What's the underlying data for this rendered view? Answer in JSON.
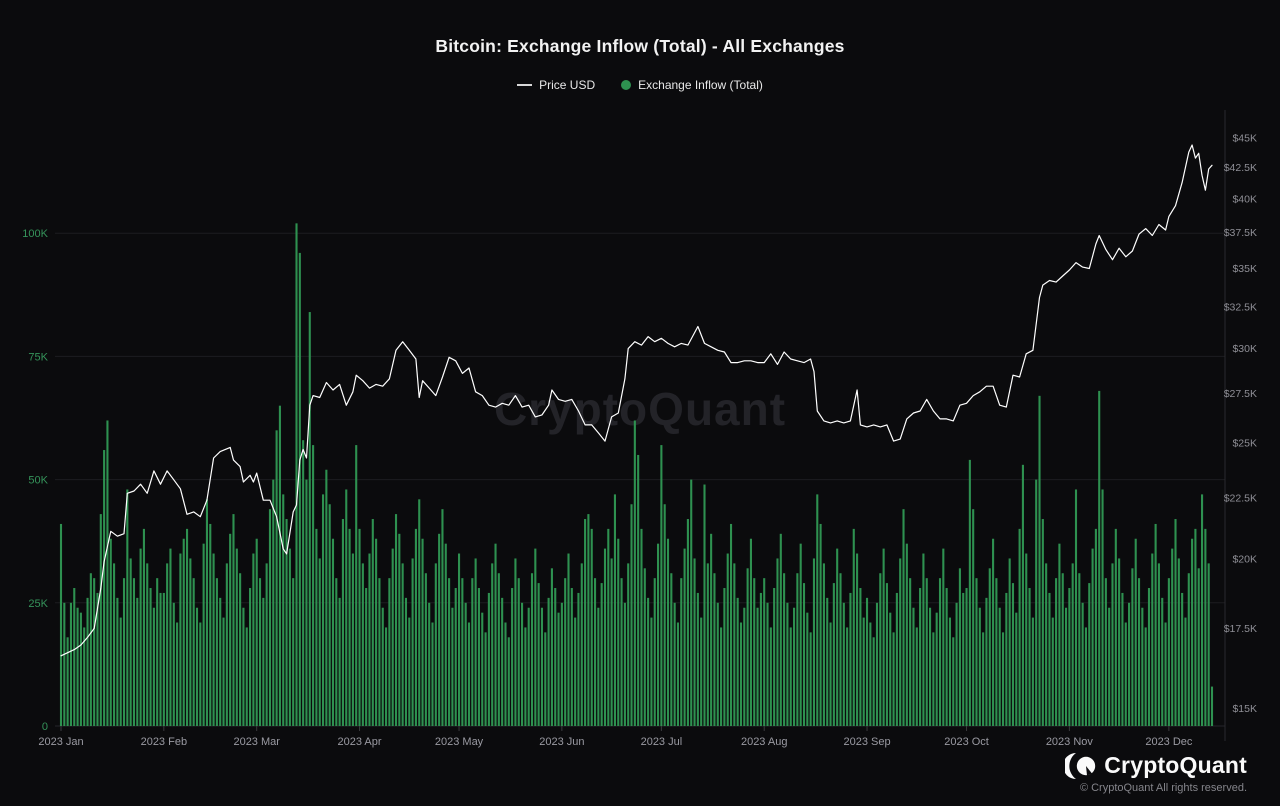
{
  "header": {
    "title": "Bitcoin: Exchange Inflow (Total) - All Exchanges",
    "legend": [
      {
        "label": "Price USD",
        "marker": "line",
        "color": "#ffffff"
      },
      {
        "label": "Exchange Inflow (Total)",
        "marker": "dot",
        "color": "#2e9150"
      }
    ]
  },
  "watermark": "CryptoQuant",
  "footer": {
    "brand": "CryptoQuant",
    "copyright": "© CryptoQuant All rights reserved."
  },
  "chart_data": {
    "type": "bar+line",
    "title": "Bitcoin: Exchange Inflow (Total) - All Exchanges",
    "x_range": "2023 Jan 1 - 2023 Dec 14, daily",
    "x_tick_labels": [
      "2023 Jan",
      "2023 Feb",
      "2023 Mar",
      "2023 Apr",
      "2023 May",
      "2023 Jun",
      "2023 Jul",
      "2023 Aug",
      "2023 Sep",
      "2023 Oct",
      "2023 Nov",
      "2023 Dec"
    ],
    "x_tick_days": [
      1,
      32,
      60,
      91,
      121,
      152,
      182,
      213,
      244,
      274,
      305,
      335
    ],
    "left_axis": {
      "scale": "linear",
      "unit": "BTC",
      "min": 0,
      "max": 125000,
      "tick_values": [
        0,
        25000,
        50000,
        75000,
        100000
      ],
      "tick_labels": [
        "0",
        "25K",
        "50K",
        "75K",
        "100K"
      ],
      "grid": true
    },
    "right_axis": {
      "scale": "log",
      "unit": "USD",
      "min": 14500,
      "max": 47500,
      "tick_values": [
        15000,
        17500,
        20000,
        22500,
        25000,
        27500,
        30000,
        32500,
        35000,
        37500,
        40000,
        42500,
        45000
      ],
      "tick_labels": [
        "$15K",
        "$17.5K",
        "$20K",
        "$22.5K",
        "$25K",
        "$27.5K",
        "$30K",
        "$32.5K",
        "$35K",
        "$37.5K",
        "$40K",
        "$42.5K",
        "$45K"
      ],
      "grid": false
    },
    "series": [
      {
        "name": "Exchange Inflow (Total)",
        "type": "bar",
        "axis": "left",
        "color": "#2e9150",
        "unit": "K BTC",
        "daily_values_k": [
          41,
          25,
          18,
          25,
          28,
          24,
          23,
          20,
          26,
          31,
          30,
          27,
          43,
          56,
          62,
          38,
          33,
          26,
          22,
          30,
          48,
          34,
          30,
          26,
          36,
          40,
          33,
          28,
          24,
          30,
          27,
          27,
          33,
          36,
          25,
          21,
          35,
          38,
          40,
          34,
          30,
          24,
          21,
          37,
          46,
          41,
          35,
          30,
          26,
          22,
          33,
          39,
          43,
          36,
          31,
          24,
          20,
          28,
          35,
          38,
          30,
          26,
          33,
          44,
          50,
          60,
          65,
          47,
          42,
          36,
          30,
          102,
          96,
          58,
          50,
          84,
          57,
          40,
          34,
          47,
          52,
          45,
          38,
          30,
          26,
          42,
          48,
          40,
          35,
          57,
          40,
          33,
          28,
          35,
          42,
          38,
          30,
          24,
          20,
          30,
          36,
          43,
          39,
          33,
          26,
          22,
          34,
          40,
          46,
          38,
          31,
          25,
          21,
          33,
          39,
          44,
          37,
          30,
          24,
          28,
          35,
          30,
          25,
          21,
          30,
          34,
          28,
          23,
          19,
          27,
          33,
          37,
          31,
          26,
          21,
          18,
          28,
          34,
          30,
          25,
          20,
          24,
          31,
          36,
          29,
          24,
          19,
          26,
          32,
          28,
          23,
          25,
          30,
          35,
          28,
          22,
          27,
          33,
          42,
          43,
          40,
          30,
          24,
          29,
          36,
          40,
          34,
          47,
          38,
          30,
          25,
          33,
          45,
          62,
          55,
          40,
          32,
          26,
          22,
          30,
          37,
          57,
          45,
          38,
          31,
          25,
          21,
          30,
          36,
          42,
          50,
          34,
          27,
          22,
          49,
          33,
          39,
          31,
          25,
          20,
          28,
          35,
          41,
          33,
          26,
          21,
          24,
          32,
          38,
          30,
          24,
          27,
          30,
          25,
          20,
          28,
          34,
          39,
          31,
          25,
          20,
          24,
          31,
          37,
          29,
          23,
          19,
          34,
          47,
          41,
          33,
          26,
          21,
          29,
          36,
          31,
          25,
          20,
          27,
          40,
          35,
          28,
          22,
          26,
          21,
          18,
          25,
          31,
          36,
          29,
          23,
          19,
          27,
          34,
          44,
          37,
          30,
          24,
          20,
          28,
          35,
          30,
          24,
          19,
          23,
          30,
          36,
          28,
          22,
          18,
          25,
          32,
          27,
          28,
          54,
          44,
          30,
          24,
          19,
          26,
          32,
          38,
          30,
          24,
          19,
          27,
          34,
          29,
          23,
          40,
          53,
          35,
          28,
          22,
          50,
          67,
          42,
          33,
          27,
          22,
          30,
          37,
          31,
          24,
          28,
          33,
          48,
          31,
          25,
          20,
          29,
          36,
          40,
          68,
          48,
          30,
          24,
          33,
          40,
          34,
          27,
          21,
          25,
          32,
          38,
          30,
          24,
          20,
          28,
          35,
          41,
          33,
          26,
          21,
          30,
          36,
          42,
          34,
          27,
          22,
          31,
          38,
          40,
          32,
          47,
          40,
          33,
          8
        ]
      },
      {
        "name": "Price USD",
        "type": "line",
        "axis": "right",
        "color": "#ffffff",
        "unit": "K USD",
        "points_day_value_k": [
          [
            1,
            16.6
          ],
          [
            3,
            16.7
          ],
          [
            5,
            16.8
          ],
          [
            7,
            16.95
          ],
          [
            9,
            17.2
          ],
          [
            11,
            17.5
          ],
          [
            13,
            18.9
          ],
          [
            14,
            19.9
          ],
          [
            16,
            21.1
          ],
          [
            18,
            20.9
          ],
          [
            20,
            21.0
          ],
          [
            21,
            22.7
          ],
          [
            23,
            22.8
          ],
          [
            25,
            23.1
          ],
          [
            27,
            22.7
          ],
          [
            29,
            23.7
          ],
          [
            31,
            23.1
          ],
          [
            33,
            23.7
          ],
          [
            35,
            23.3
          ],
          [
            37,
            22.9
          ],
          [
            39,
            21.8
          ],
          [
            41,
            21.9
          ],
          [
            43,
            21.7
          ],
          [
            45,
            22.4
          ],
          [
            47,
            24.3
          ],
          [
            49,
            24.6
          ],
          [
            52,
            24.8
          ],
          [
            53,
            24.2
          ],
          [
            55,
            23.9
          ],
          [
            56,
            23.2
          ],
          [
            58,
            23.5
          ],
          [
            59,
            23.2
          ],
          [
            60,
            23.6
          ],
          [
            62,
            22.4
          ],
          [
            64,
            22.4
          ],
          [
            66,
            21.7
          ],
          [
            68,
            20.4
          ],
          [
            69,
            20.2
          ],
          [
            71,
            21.9
          ],
          [
            72,
            22.2
          ],
          [
            73,
            24.2
          ],
          [
            74,
            24.7
          ],
          [
            75,
            24.3
          ],
          [
            76,
            26.9
          ],
          [
            77,
            27.4
          ],
          [
            79,
            27.3
          ],
          [
            81,
            28.1
          ],
          [
            83,
            27.7
          ],
          [
            85,
            28.0
          ],
          [
            87,
            26.9
          ],
          [
            89,
            27.6
          ],
          [
            90,
            28.5
          ],
          [
            92,
            28.2
          ],
          [
            94,
            27.8
          ],
          [
            96,
            28.0
          ],
          [
            98,
            27.9
          ],
          [
            100,
            28.3
          ],
          [
            102,
            29.9
          ],
          [
            104,
            30.4
          ],
          [
            106,
            29.9
          ],
          [
            108,
            29.4
          ],
          [
            109,
            27.3
          ],
          [
            110,
            28.2
          ],
          [
            112,
            27.8
          ],
          [
            114,
            27.4
          ],
          [
            116,
            28.4
          ],
          [
            118,
            29.5
          ],
          [
            120,
            29.3
          ],
          [
            122,
            28.6
          ],
          [
            124,
            28.9
          ],
          [
            126,
            27.6
          ],
          [
            128,
            27.4
          ],
          [
            130,
            26.9
          ],
          [
            132,
            26.8
          ],
          [
            134,
            27.0
          ],
          [
            136,
            26.9
          ],
          [
            138,
            27.4
          ],
          [
            140,
            26.8
          ],
          [
            142,
            26.9
          ],
          [
            144,
            26.3
          ],
          [
            146,
            26.4
          ],
          [
            148,
            26.9
          ],
          [
            149,
            27.7
          ],
          [
            151,
            27.2
          ],
          [
            153,
            27.1
          ],
          [
            155,
            27.2
          ],
          [
            157,
            26.6
          ],
          [
            159,
            25.9
          ],
          [
            161,
            25.9
          ],
          [
            163,
            25.5
          ],
          [
            165,
            25.1
          ],
          [
            167,
            26.3
          ],
          [
            169,
            26.5
          ],
          [
            171,
            28.3
          ],
          [
            172,
            30.0
          ],
          [
            174,
            30.4
          ],
          [
            176,
            30.2
          ],
          [
            178,
            30.7
          ],
          [
            180,
            30.4
          ],
          [
            182,
            30.6
          ],
          [
            184,
            30.3
          ],
          [
            186,
            30.1
          ],
          [
            188,
            30.3
          ],
          [
            190,
            30.2
          ],
          [
            193,
            31.3
          ],
          [
            195,
            30.3
          ],
          [
            197,
            30.1
          ],
          [
            199,
            29.9
          ],
          [
            201,
            29.8
          ],
          [
            203,
            29.2
          ],
          [
            205,
            29.2
          ],
          [
            207,
            29.3
          ],
          [
            209,
            29.3
          ],
          [
            211,
            29.2
          ],
          [
            213,
            29.2
          ],
          [
            215,
            29.7
          ],
          [
            217,
            29.1
          ],
          [
            219,
            29.8
          ],
          [
            221,
            29.4
          ],
          [
            223,
            29.3
          ],
          [
            225,
            29.2
          ],
          [
            227,
            29.4
          ],
          [
            228,
            28.7
          ],
          [
            229,
            26.6
          ],
          [
            231,
            26.1
          ],
          [
            233,
            26.0
          ],
          [
            235,
            26.1
          ],
          [
            237,
            26.0
          ],
          [
            239,
            26.1
          ],
          [
            241,
            27.7
          ],
          [
            242,
            25.9
          ],
          [
            244,
            25.8
          ],
          [
            246,
            25.9
          ],
          [
            248,
            25.8
          ],
          [
            250,
            25.9
          ],
          [
            252,
            25.1
          ],
          [
            254,
            25.2
          ],
          [
            256,
            26.2
          ],
          [
            258,
            26.5
          ],
          [
            260,
            26.6
          ],
          [
            262,
            27.2
          ],
          [
            264,
            26.6
          ],
          [
            266,
            26.2
          ],
          [
            268,
            26.2
          ],
          [
            270,
            26.1
          ],
          [
            272,
            26.9
          ],
          [
            274,
            27.0
          ],
          [
            276,
            27.4
          ],
          [
            278,
            27.6
          ],
          [
            280,
            27.9
          ],
          [
            282,
            27.9
          ],
          [
            284,
            26.9
          ],
          [
            286,
            26.8
          ],
          [
            288,
            28.5
          ],
          [
            290,
            28.4
          ],
          [
            292,
            29.7
          ],
          [
            294,
            29.9
          ],
          [
            296,
            33.1
          ],
          [
            297,
            33.9
          ],
          [
            299,
            34.2
          ],
          [
            301,
            34.1
          ],
          [
            303,
            34.5
          ],
          [
            305,
            34.9
          ],
          [
            307,
            35.4
          ],
          [
            309,
            35.1
          ],
          [
            311,
            35.0
          ],
          [
            313,
            36.7
          ],
          [
            314,
            37.3
          ],
          [
            316,
            36.3
          ],
          [
            318,
            35.6
          ],
          [
            320,
            36.4
          ],
          [
            322,
            35.8
          ],
          [
            324,
            36.2
          ],
          [
            326,
            37.4
          ],
          [
            328,
            37.8
          ],
          [
            330,
            37.3
          ],
          [
            332,
            38.1
          ],
          [
            334,
            37.7
          ],
          [
            335,
            38.7
          ],
          [
            337,
            39.5
          ],
          [
            339,
            41.3
          ],
          [
            341,
            43.8
          ],
          [
            342,
            44.4
          ],
          [
            343,
            43.3
          ],
          [
            344,
            43.7
          ],
          [
            345,
            41.9
          ],
          [
            346,
            40.7
          ],
          [
            347,
            42.4
          ],
          [
            348,
            42.7
          ]
        ]
      }
    ]
  }
}
